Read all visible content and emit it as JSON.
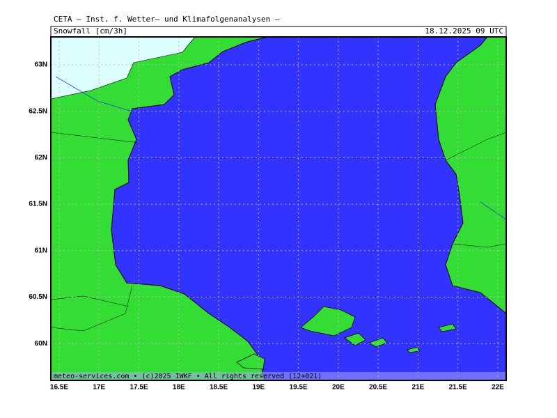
{
  "header": {
    "title": "CETA — Inst. f. Wetter— und Klimafolgenanalysen —",
    "subtitle": "Snowfall [cm/3h]",
    "datetime": "18.12.2025 09 UTC"
  },
  "map": {
    "lat_labels": [
      "63N",
      "62.5N",
      "62N",
      "61.5N",
      "61N",
      "60.5N",
      "60N"
    ],
    "lon_labels": [
      "16.5E",
      "17E",
      "17.5E",
      "18E",
      "18.5E",
      "19E",
      "19.5E",
      "20E",
      "20.5E",
      "21E",
      "21.5E",
      "22E"
    ],
    "footer": "meteo-services.com • (c)2025 IWKF • All rights reserved (12+021)"
  }
}
